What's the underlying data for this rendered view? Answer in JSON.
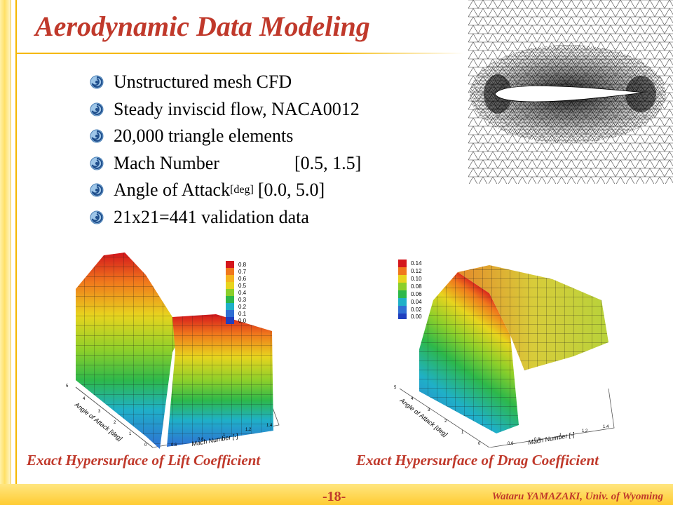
{
  "slide": {
    "title": "Aerodynamic Data Modeling",
    "page_number": "-18-",
    "author": "Wataru YAMAZAKI, Univ. of Wyoming"
  },
  "bullets": [
    {
      "text": "Unstructured mesh CFD"
    },
    {
      "text": "Steady inviscid flow, NACA0012"
    },
    {
      "text": "20,000 triangle elements"
    },
    {
      "label": "Mach Number",
      "range": "[0.5, 1.5]"
    },
    {
      "label": "Angle of Attack",
      "subscript": "[deg]",
      "range": "[0.0, 5.0]"
    },
    {
      "text": "21x21=441 validation data"
    }
  ],
  "figures": {
    "lift": {
      "caption": "Exact Hypersurface of Lift Coefficient",
      "xlabel": "Mach Number [-]",
      "ylabel": "Angle of Attack [deg]",
      "xticks": [
        "0.6",
        "0.8",
        "1",
        "1.2",
        "1.4"
      ],
      "yticks": [
        "0",
        "1",
        "2",
        "3",
        "4",
        "5"
      ],
      "colorbar": [
        "0.8",
        "0.7",
        "0.6",
        "0.5",
        "0.4",
        "0.3",
        "0.2",
        "0.1",
        "0.0"
      ]
    },
    "drag": {
      "caption": "Exact Hypersurface of Drag Coefficient",
      "xlabel": "Mach Number [-]",
      "ylabel": "Angle of Attack [deg]",
      "xticks": [
        "0.6",
        "0.8",
        "1",
        "1.2",
        "1.4"
      ],
      "yticks": [
        "0",
        "1",
        "2",
        "3",
        "4",
        "5"
      ],
      "colorbar": [
        "0.14",
        "0.12",
        "0.10",
        "0.08",
        "0.06",
        "0.04",
        "0.02",
        "0.00"
      ]
    }
  },
  "icons": {
    "bullet": "swirl-bullet-icon",
    "mesh": "airfoil-mesh-image"
  },
  "colors": {
    "title": "#c0392b",
    "accent": "#f5b800",
    "footer": "#ffcc33"
  }
}
